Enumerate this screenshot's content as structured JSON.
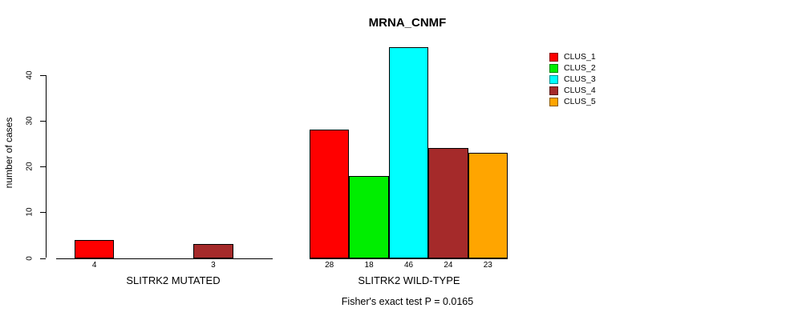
{
  "title": "MRNA_CNMF",
  "subtitle": "Fisher's exact test P = 0.0165",
  "chart_data": {
    "type": "bar",
    "title": "MRNA_CNMF",
    "subtitle": "Fisher's exact test P = 0.0165",
    "ylabel": "number of cases",
    "xlabel": "",
    "yticks": [
      0,
      10,
      20,
      30,
      40
    ],
    "ylim": [
      0,
      46
    ],
    "grid": false,
    "legend_position": "top-right",
    "categories": [
      "SLITRK2 MUTATED",
      "SLITRK2 WILD-TYPE"
    ],
    "series": [
      {
        "name": "CLUS_1",
        "color": "#ff0000",
        "values": [
          4,
          28
        ]
      },
      {
        "name": "CLUS_2",
        "color": "#00ee00",
        "values": [
          0,
          18
        ]
      },
      {
        "name": "CLUS_3",
        "color": "#00ffff",
        "values": [
          0,
          46
        ]
      },
      {
        "name": "CLUS_4",
        "color": "#a52a2a",
        "values": [
          3,
          24
        ]
      },
      {
        "name": "CLUS_5",
        "color": "#ffa500",
        "values": [
          0,
          23
        ]
      }
    ]
  }
}
